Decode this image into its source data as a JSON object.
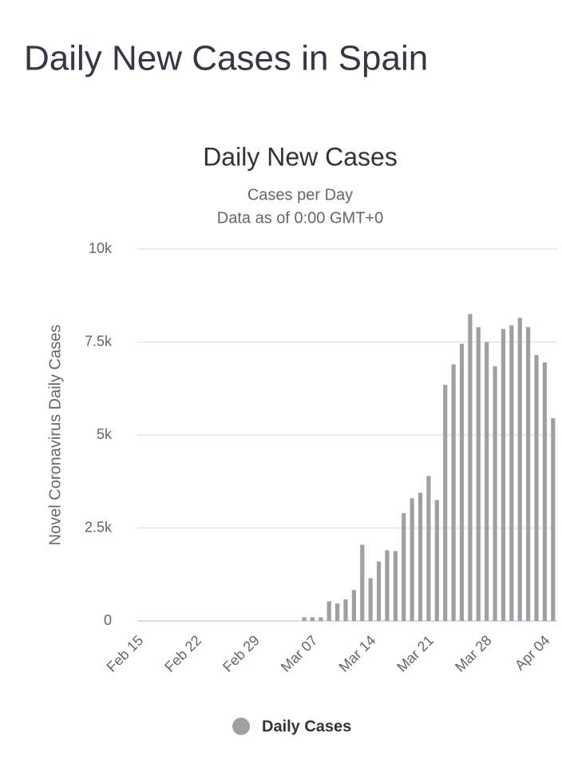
{
  "header": {
    "title": "Daily New Cases in Spain"
  },
  "chart_data": {
    "type": "bar",
    "title": "Daily New Cases",
    "subtitle": [
      "Cases per Day",
      "Data as of 0:00 GMT+0"
    ],
    "y_label": "Novel Coronavirus Daily Cases",
    "categories": [
      "Feb 15",
      null,
      null,
      null,
      null,
      null,
      null,
      "Feb 22",
      null,
      null,
      null,
      null,
      null,
      null,
      "Feb 29",
      null,
      null,
      null,
      null,
      null,
      null,
      "Mar 07",
      null,
      null,
      null,
      null,
      null,
      null,
      "Mar 14",
      null,
      null,
      null,
      null,
      null,
      null,
      "Mar 21",
      null,
      null,
      null,
      null,
      null,
      null,
      "Mar 28",
      null,
      null,
      null,
      null,
      null,
      null,
      "Apr 04",
      null
    ],
    "series": [
      {
        "name": "Daily Cases",
        "color": "#a0a0a0",
        "values": [
          0,
          0,
          0,
          0,
          0,
          0,
          0,
          0,
          0,
          0,
          0,
          0,
          0,
          0,
          0,
          0,
          0,
          0,
          0,
          0,
          100,
          100,
          100,
          530,
          470,
          580,
          830,
          2050,
          1150,
          1600,
          1900,
          1880,
          2900,
          3300,
          3450,
          3900,
          3250,
          6350,
          6900,
          7450,
          8250,
          7900,
          7500,
          6850,
          7850,
          7950,
          8150,
          7900,
          7150,
          6950,
          5450
        ]
      }
    ],
    "ylim": [
      0,
      10000
    ],
    "yticks": [
      0,
      {
        "value": 2500,
        "label": "2.5k"
      },
      {
        "value": 5000,
        "label": "5k"
      },
      {
        "value": 7500,
        "label": "7.5k"
      },
      {
        "value": 10000,
        "label": "10k"
      }
    ],
    "grid": true
  }
}
